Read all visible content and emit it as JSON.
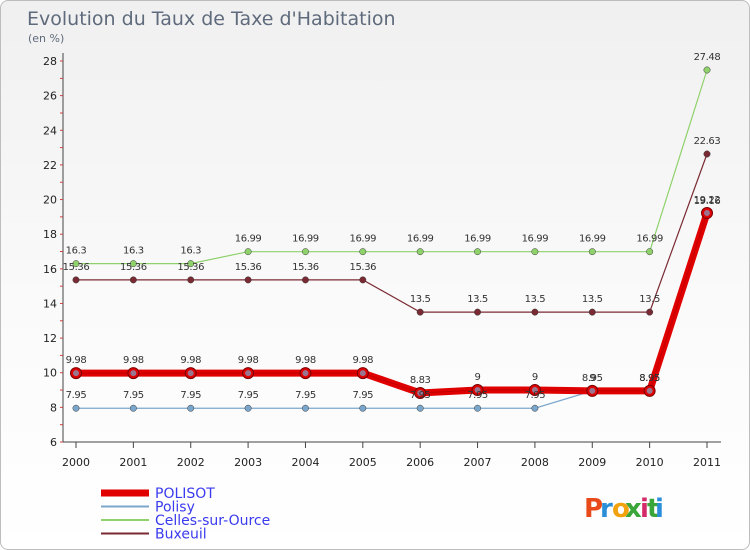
{
  "chart_data": {
    "type": "line",
    "title": "Evolution du Taux de Taxe d'Habitation",
    "subtitle": "(en %)",
    "x": [
      "2000",
      "2001",
      "2002",
      "2003",
      "2004",
      "2005",
      "2006",
      "2007",
      "2008",
      "2009",
      "2010",
      "2011"
    ],
    "ylim": [
      6,
      28
    ],
    "yticks": [
      6,
      8,
      10,
      12,
      14,
      16,
      18,
      20,
      22,
      24,
      26,
      28
    ],
    "grid": false,
    "legend_position": "bottom-left",
    "series": [
      {
        "name": "POLISOT",
        "color": "#e00000",
        "values": [
          9.98,
          9.98,
          9.98,
          9.98,
          9.98,
          9.98,
          8.83,
          9,
          9,
          8.95,
          8.95,
          19.22
        ],
        "labels": [
          "9.98",
          "9.98",
          "9.98",
          "9.98",
          "9.98",
          "9.98",
          "8.83",
          "9",
          "9",
          "9",
          "8.95",
          "19.22"
        ]
      },
      {
        "name": "Polisy",
        "color": "#7aa6cc",
        "values": [
          7.95,
          7.95,
          7.95,
          7.95,
          7.95,
          7.95,
          7.95,
          7.95,
          7.95,
          8.95,
          8.95,
          19.16
        ],
        "labels": [
          "7.95",
          "7.95",
          "7.95",
          "7.95",
          "7.95",
          "7.95",
          "7.95",
          "7.95",
          "7.95",
          "8.95",
          "8.95",
          "19.16"
        ]
      },
      {
        "name": "Celles-sur-Ource",
        "color": "#8fd16a",
        "values": [
          16.3,
          16.3,
          16.3,
          16.99,
          16.99,
          16.99,
          16.99,
          16.99,
          16.99,
          16.99,
          16.99,
          27.48
        ],
        "labels": [
          "16.3",
          "16.3",
          "16.3",
          "16.99",
          "16.99",
          "16.99",
          "16.99",
          "16.99",
          "16.99",
          "16.99",
          "16.99",
          "27.48"
        ]
      },
      {
        "name": "Buxeuil",
        "color": "#7a2a32",
        "values": [
          15.36,
          15.36,
          15.36,
          15.36,
          15.36,
          15.36,
          13.5,
          13.5,
          13.5,
          13.5,
          13.5,
          22.63
        ],
        "labels": [
          "15.36",
          "15.36",
          "15.36",
          "15.36",
          "15.36",
          "15.36",
          "13.5",
          "13.5",
          "13.5",
          "13.5",
          "13.5",
          "22.63"
        ]
      }
    ]
  },
  "logo": {
    "text": "Proxiti",
    "colors": [
      "#e84a1a",
      "#2a8fd8",
      "#f2a20c",
      "#3aa63a",
      "#d42a6a",
      "#3aa63a",
      "#2a8fd8"
    ]
  }
}
